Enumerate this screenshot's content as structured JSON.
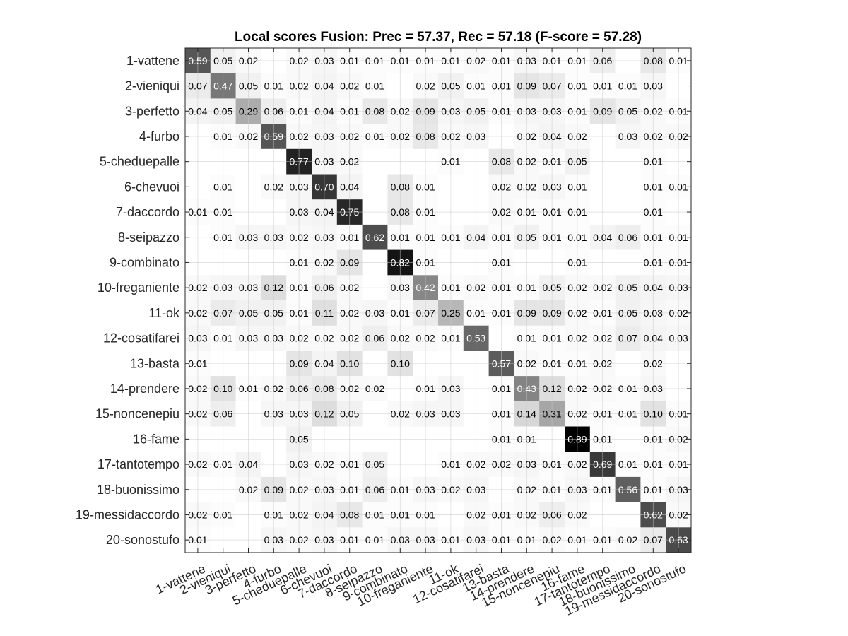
{
  "chart_data": {
    "type": "heatmap",
    "title": "Local scores Fusion: Prec = 57.37, Rec = 57.18 (F-score = 57.28)",
    "categories": [
      "1-vattene",
      "2-vieniqui",
      "3-perfetto",
      "4-furbo",
      "5-cheduepalle",
      "6-chevuoi",
      "7-daccordo",
      "8-seipazzo",
      "9-combinato",
      "10-freganiente",
      "11-ok",
      "12-cosatifarei",
      "13-basta",
      "14-prendere",
      "15-noncenepiu",
      "16-fame",
      "17-tantotempo",
      "18-buonissimo",
      "19-messidaccordo",
      "20-sonostufo"
    ],
    "matrix": [
      [
        0.59,
        0.05,
        0.02,
        null,
        0.02,
        0.03,
        0.01,
        0.01,
        0.01,
        0.01,
        0.01,
        0.02,
        0.01,
        0.03,
        0.01,
        0.01,
        0.06,
        null,
        0.08,
        0.01
      ],
      [
        0.07,
        0.47,
        0.05,
        0.01,
        0.02,
        0.04,
        0.02,
        0.01,
        null,
        0.02,
        0.05,
        0.01,
        0.01,
        0.09,
        0.07,
        0.01,
        0.01,
        0.01,
        0.03,
        null
      ],
      [
        0.04,
        0.05,
        0.29,
        0.06,
        0.01,
        0.04,
        0.01,
        0.08,
        0.02,
        0.09,
        0.03,
        0.05,
        0.01,
        0.03,
        0.03,
        0.01,
        0.09,
        0.05,
        0.02,
        0.01
      ],
      [
        null,
        0.01,
        0.02,
        0.59,
        0.02,
        0.03,
        0.02,
        0.01,
        0.02,
        0.08,
        0.02,
        0.03,
        null,
        0.02,
        0.04,
        0.02,
        null,
        0.03,
        0.02,
        0.02
      ],
      [
        null,
        null,
        null,
        null,
        0.77,
        0.03,
        0.02,
        null,
        null,
        null,
        0.01,
        null,
        0.08,
        0.02,
        0.01,
        0.05,
        null,
        null,
        0.01,
        null
      ],
      [
        null,
        0.01,
        null,
        0.02,
        0.03,
        0.7,
        0.04,
        null,
        0.08,
        0.01,
        null,
        null,
        0.02,
        0.02,
        0.03,
        0.01,
        null,
        null,
        0.01,
        0.01
      ],
      [
        0.01,
        0.01,
        null,
        null,
        0.03,
        0.04,
        0.75,
        null,
        0.08,
        0.01,
        null,
        null,
        0.02,
        0.01,
        0.01,
        0.01,
        null,
        null,
        0.01,
        null
      ],
      [
        null,
        0.01,
        0.03,
        0.03,
        0.02,
        0.03,
        0.01,
        0.62,
        0.01,
        0.01,
        0.01,
        0.04,
        0.01,
        0.05,
        0.01,
        0.01,
        0.04,
        0.06,
        0.01,
        0.01
      ],
      [
        null,
        null,
        null,
        null,
        0.01,
        0.02,
        0.09,
        null,
        0.82,
        0.01,
        null,
        null,
        0.01,
        null,
        null,
        0.01,
        null,
        null,
        0.01,
        0.01
      ],
      [
        0.02,
        0.03,
        0.03,
        0.12,
        0.01,
        0.06,
        0.02,
        null,
        0.03,
        0.42,
        0.01,
        0.02,
        0.01,
        0.01,
        0.05,
        0.02,
        0.02,
        0.05,
        0.04,
        0.03
      ],
      [
        0.02,
        0.07,
        0.05,
        0.05,
        0.01,
        0.11,
        0.02,
        0.03,
        0.01,
        0.07,
        0.25,
        0.01,
        0.01,
        0.09,
        0.09,
        0.02,
        0.01,
        0.05,
        0.03,
        0.02
      ],
      [
        0.03,
        0.01,
        0.03,
        0.03,
        0.02,
        0.02,
        0.02,
        0.06,
        0.02,
        0.02,
        0.01,
        0.53,
        null,
        0.01,
        0.01,
        0.02,
        0.02,
        0.07,
        0.04,
        0.03
      ],
      [
        0.01,
        null,
        null,
        null,
        0.09,
        0.04,
        0.1,
        null,
        0.1,
        null,
        null,
        null,
        0.57,
        0.02,
        0.01,
        0.01,
        0.02,
        null,
        0.02,
        null
      ],
      [
        0.02,
        0.1,
        0.01,
        0.02,
        0.06,
        0.08,
        0.02,
        0.02,
        null,
        0.01,
        0.03,
        null,
        0.01,
        0.43,
        0.12,
        0.02,
        0.02,
        0.01,
        0.03,
        null
      ],
      [
        0.02,
        0.06,
        null,
        0.03,
        0.03,
        0.12,
        0.05,
        null,
        0.02,
        0.03,
        0.03,
        null,
        0.01,
        0.14,
        0.31,
        0.02,
        0.01,
        0.01,
        0.1,
        0.01
      ],
      [
        null,
        null,
        null,
        null,
        0.05,
        null,
        null,
        null,
        null,
        null,
        null,
        null,
        0.01,
        0.01,
        null,
        0.89,
        0.01,
        null,
        0.01,
        0.02
      ],
      [
        0.02,
        0.01,
        0.04,
        null,
        0.03,
        0.02,
        0.01,
        0.05,
        null,
        null,
        0.01,
        0.02,
        0.02,
        0.03,
        0.01,
        0.02,
        0.69,
        0.01,
        0.01,
        0.01
      ],
      [
        null,
        null,
        0.02,
        0.09,
        0.02,
        0.03,
        0.01,
        0.06,
        0.01,
        0.03,
        0.02,
        0.03,
        null,
        0.02,
        0.01,
        0.03,
        0.01,
        0.56,
        0.01,
        0.03
      ],
      [
        0.02,
        0.01,
        null,
        0.01,
        0.02,
        0.04,
        0.08,
        0.01,
        0.01,
        0.01,
        null,
        0.02,
        0.01,
        0.02,
        0.06,
        0.02,
        null,
        null,
        0.62,
        0.02
      ],
      [
        0.01,
        null,
        null,
        0.03,
        0.02,
        0.03,
        0.01,
        0.01,
        0.03,
        0.03,
        0.01,
        0.03,
        0.01,
        0.01,
        0.02,
        0.01,
        0.01,
        0.02,
        0.07,
        0.63
      ]
    ],
    "colormap": "gray-inverted",
    "vmin": 0,
    "vmax": 0.89,
    "grid": true,
    "value_format": "2-decimals"
  }
}
